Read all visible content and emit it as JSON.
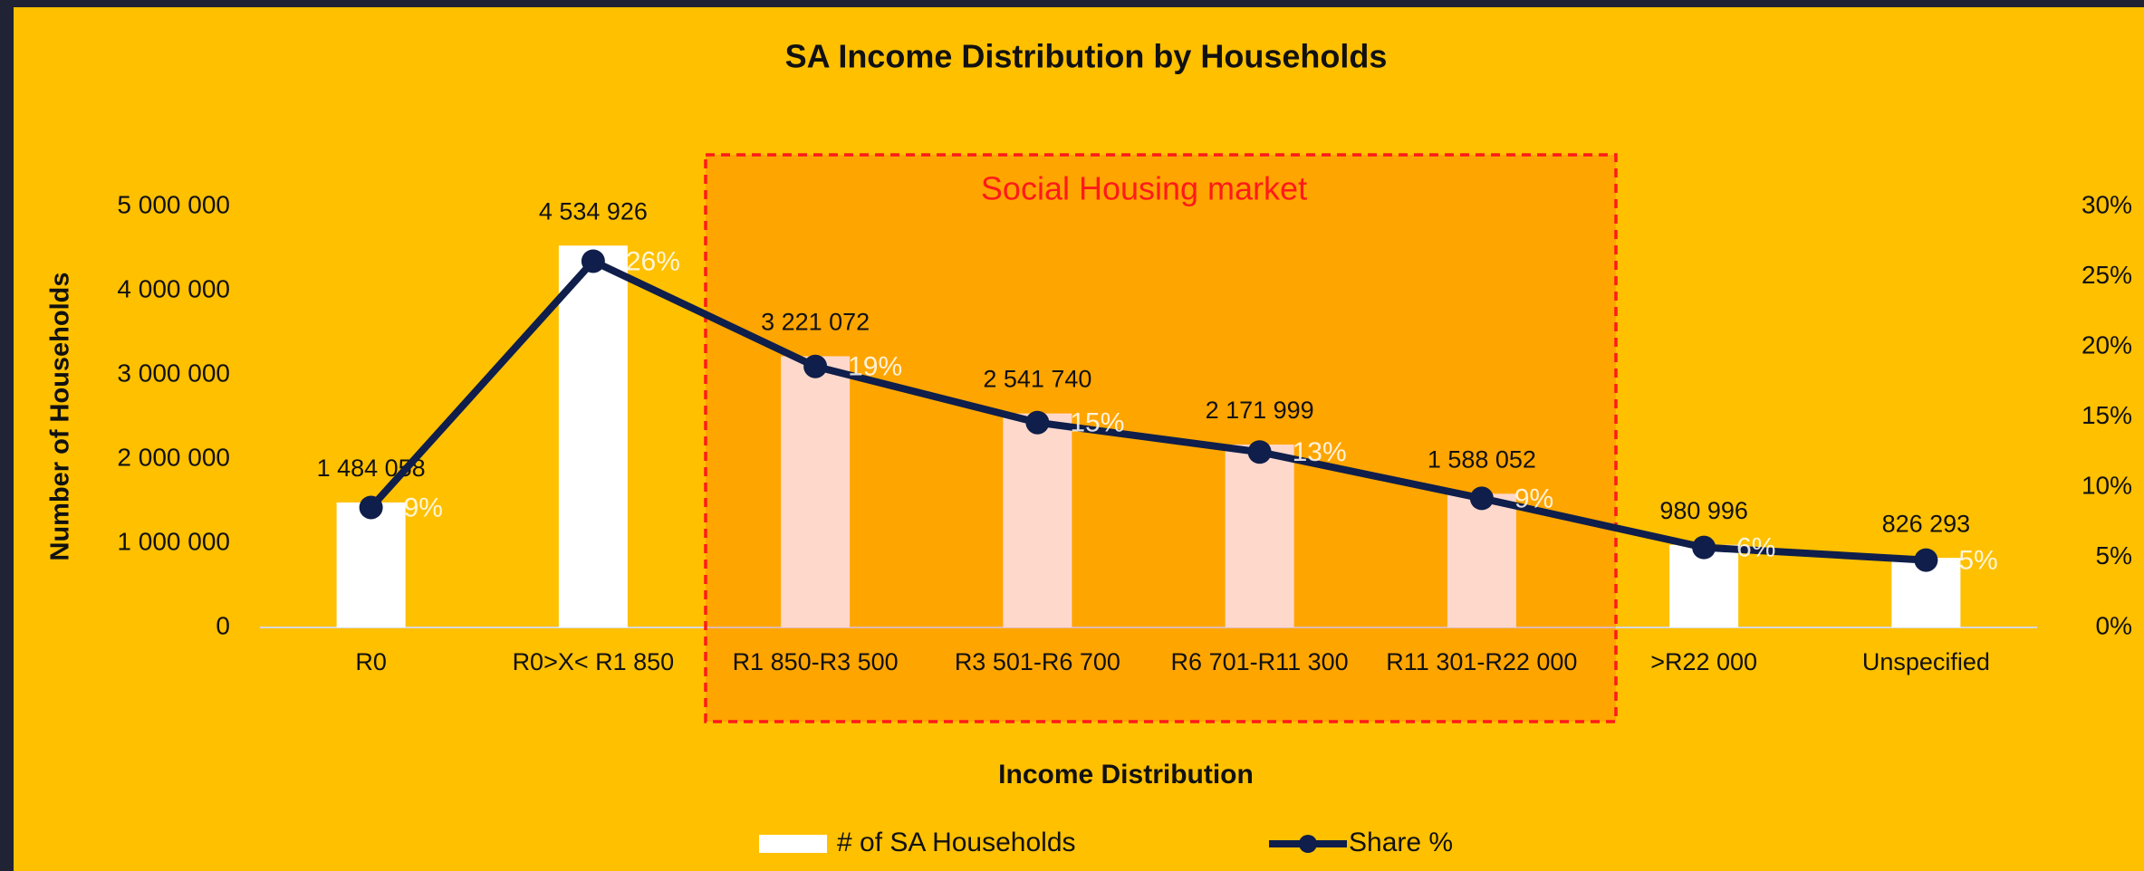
{
  "chart_data": {
    "type": "bar_line",
    "title": "SA Income Distribution by Households",
    "x_label": "Income Distribution",
    "y_label": "Number of Households",
    "annotation": "Social Housing market",
    "categories": [
      "R0",
      "R0>X< R1 850",
      "R1 850-R3 500",
      "R3 501-R6 700",
      "R6 701-R11 300",
      "R11 301-R22 000",
      ">R22 000",
      "Unspecified"
    ],
    "series": [
      {
        "name": "# of SA Households",
        "type": "bar",
        "color": "#ffffff",
        "values": [
          1484058,
          4534926,
          3221072,
          2541740,
          2171999,
          1588052,
          980996,
          826293
        ],
        "value_labels": [
          "1 484 058",
          "4 534 926",
          "3 221 072",
          "2 541 740",
          "2 171 999",
          "1 588 052",
          "980 996",
          "826 293"
        ]
      },
      {
        "name": "Share %",
        "type": "line",
        "axis": "y2",
        "color": "#0f1e4a",
        "values": [
          8.55,
          26.1,
          18.6,
          14.6,
          12.5,
          9.2,
          5.7,
          4.8
        ],
        "value_labels": [
          "9%",
          "26%",
          "19%",
          "15%",
          "13%",
          "9%",
          "6%",
          "5%"
        ]
      }
    ],
    "ylim": [
      0,
      5000000
    ],
    "yticks": [
      0,
      {
        "value": 1000000,
        "label": "1 000 000"
      },
      {
        "value": 2000000,
        "label": "2 000 000"
      },
      {
        "value": 3000000,
        "label": "3 000 000"
      },
      {
        "value": 4000000,
        "label": "4 000 000"
      },
      {
        "value": 5000000,
        "label": "5 000 000"
      }
    ],
    "y2lim": [
      0,
      30
    ],
    "y2ticks": [
      {
        "value": 0,
        "label": "0%"
      },
      {
        "value": 5,
        "label": "5%"
      },
      {
        "value": 10,
        "label": "10%"
      },
      {
        "value": 15,
        "label": "15%"
      },
      {
        "value": 20,
        "label": "20%"
      },
      {
        "value": 25,
        "label": "25%"
      },
      {
        "value": 30,
        "label": "30%"
      }
    ],
    "grid": false,
    "legend": "bottom"
  }
}
